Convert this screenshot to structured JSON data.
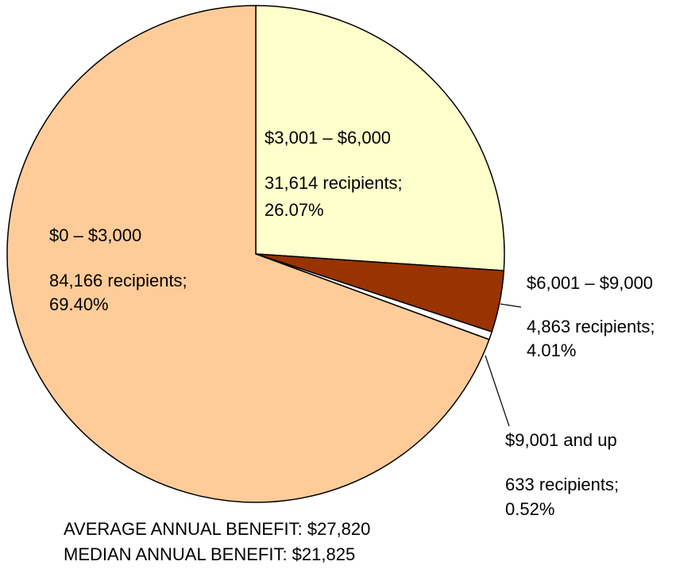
{
  "chart_data": {
    "type": "pie",
    "categories": [
      "$3,001 – $6,000",
      "$6,001 – $9,000",
      "$9,001 and up",
      "$0 – $3,000"
    ],
    "values": [
      26.07,
      4.01,
      0.52,
      69.4
    ],
    "value_labels": [
      "26.07%",
      "4.01%",
      "0.52%",
      "69.40%"
    ],
    "counts": [
      31614,
      4863,
      633,
      84166
    ],
    "count_labels": [
      "31,614 recipients;",
      "4,863 recipients;",
      "633 recipients;",
      "84,166 recipients;"
    ],
    "colors": [
      "#ffffcc",
      "#993300",
      "#ffffff",
      "#ffcc99"
    ],
    "notes": [
      "AVERAGE ANNUAL BENEFIT: $27,820",
      "MEDIAN ANNUAL BENEFIT: $21,825"
    ]
  }
}
